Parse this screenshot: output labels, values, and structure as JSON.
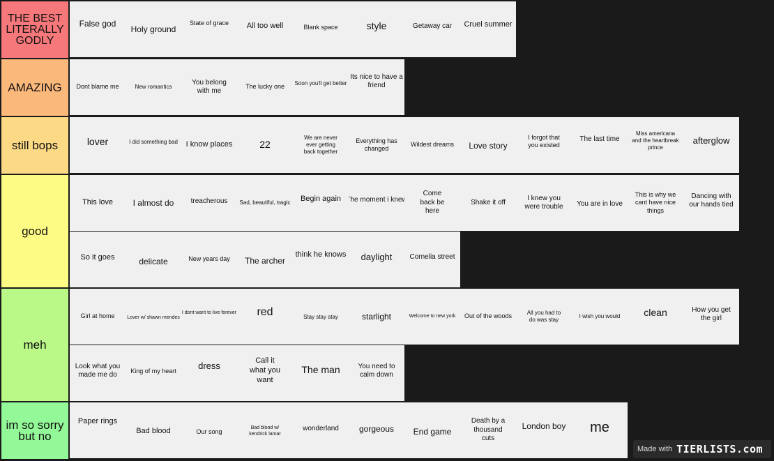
{
  "watermark": {
    "made_with": "Made with",
    "brand": "TIERLISTS.com"
  },
  "tiers": [
    {
      "label": "THE BEST LITERALLY GODLY",
      "color": "#f7787a",
      "items": [
        "False god",
        "Holy ground",
        "State of grace",
        "All too well",
        "Blank space",
        "style",
        "Getaway car",
        "Cruel summer"
      ]
    },
    {
      "label": "AMAZING",
      "color": "#fbb87b",
      "items": [
        "Dont blame me",
        "New romantics",
        "You belong with me",
        "The lucky one",
        "Soon you'll get better",
        "Its nice to have a friend"
      ]
    },
    {
      "label": "still bops",
      "color": "#fcd985",
      "items": [
        "lover",
        "I did something bad",
        "I know places",
        "22",
        "We are never ever getting back together",
        "Everything has changed",
        "Wildest dreams",
        "Love story",
        "I forgot that you existed",
        "The last time",
        "Miss americana and the heartbreak prince",
        "afterglow"
      ]
    },
    {
      "label": "good",
      "color": "#fdfb84",
      "items": [
        "This love",
        "I almost do",
        "treacherous",
        "Sad, beautiful, tragic",
        "Begin again",
        "The moment i knew",
        "Come back be here",
        "Shake it off",
        "I knew you were trouble",
        "You are in love",
        "This is why we cant have nice things",
        "Dancing with our hands tied",
        "So it goes",
        "delicate",
        "New years day",
        "The archer",
        "think he knows",
        "daylight",
        "Cornelia street"
      ]
    },
    {
      "label": "meh",
      "color": "#baf887",
      "items": [
        "Girl at home",
        "Lover w/ shawn mendes",
        "I dont want to live forever",
        "red",
        "Stay stay stay",
        "starlight",
        "Welcome to new york",
        "Out of the woods",
        "All you had to do was stay",
        "I wish you would",
        "clean",
        "How you get the girl",
        "Look what you made me do",
        "King of my heart",
        "dress",
        "Call it what you want",
        "The man",
        "You need to calm down"
      ]
    },
    {
      "label": "im so sorry but no",
      "color": "#93f898",
      "items": [
        "Paper rings",
        "Bad blood",
        "Our song",
        "Bad blood w/ kendrick lamar",
        "wonderland",
        "gorgeous",
        "End game",
        "Death by a thousand cuts",
        "London boy",
        "me"
      ]
    }
  ]
}
